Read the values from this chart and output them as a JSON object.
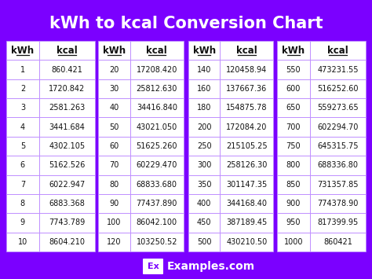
{
  "title": "kWh to kcal Conversion Chart",
  "bg_color": "#7B00FF",
  "cell_bg": "#FFFFFF",
  "cell_border": "#BB88FF",
  "col1": [
    [
      1,
      "860.421"
    ],
    [
      2,
      "1720.842"
    ],
    [
      3,
      "2581.263"
    ],
    [
      4,
      "3441.684"
    ],
    [
      5,
      "4302.105"
    ],
    [
      6,
      "5162.526"
    ],
    [
      7,
      "6022.947"
    ],
    [
      8,
      "6883.368"
    ],
    [
      9,
      "7743.789"
    ],
    [
      10,
      "8604.210"
    ]
  ],
  "col2": [
    [
      20,
      "17208.420"
    ],
    [
      30,
      "25812.630"
    ],
    [
      40,
      "34416.840"
    ],
    [
      50,
      "43021.050"
    ],
    [
      60,
      "51625.260"
    ],
    [
      70,
      "60229.470"
    ],
    [
      80,
      "68833.680"
    ],
    [
      90,
      "77437.890"
    ],
    [
      100,
      "86042.100"
    ],
    [
      120,
      "103250.52"
    ]
  ],
  "col3": [
    [
      140,
      "120458.94"
    ],
    [
      160,
      "137667.36"
    ],
    [
      180,
      "154875.78"
    ],
    [
      200,
      "172084.20"
    ],
    [
      250,
      "215105.25"
    ],
    [
      300,
      "258126.30"
    ],
    [
      350,
      "301147.35"
    ],
    [
      400,
      "344168.40"
    ],
    [
      450,
      "387189.45"
    ],
    [
      500,
      "430210.50"
    ]
  ],
  "col4": [
    [
      550,
      "473231.55"
    ],
    [
      600,
      "516252.60"
    ],
    [
      650,
      "559273.65"
    ],
    [
      700,
      "602294.70"
    ],
    [
      750,
      "645315.75"
    ],
    [
      800,
      "688336.80"
    ],
    [
      850,
      "731357.85"
    ],
    [
      900,
      "774378.90"
    ],
    [
      950,
      "817399.95"
    ],
    [
      1000,
      "860421"
    ]
  ],
  "footer_text": "Examples.com",
  "footer_ex_text": "Ex"
}
